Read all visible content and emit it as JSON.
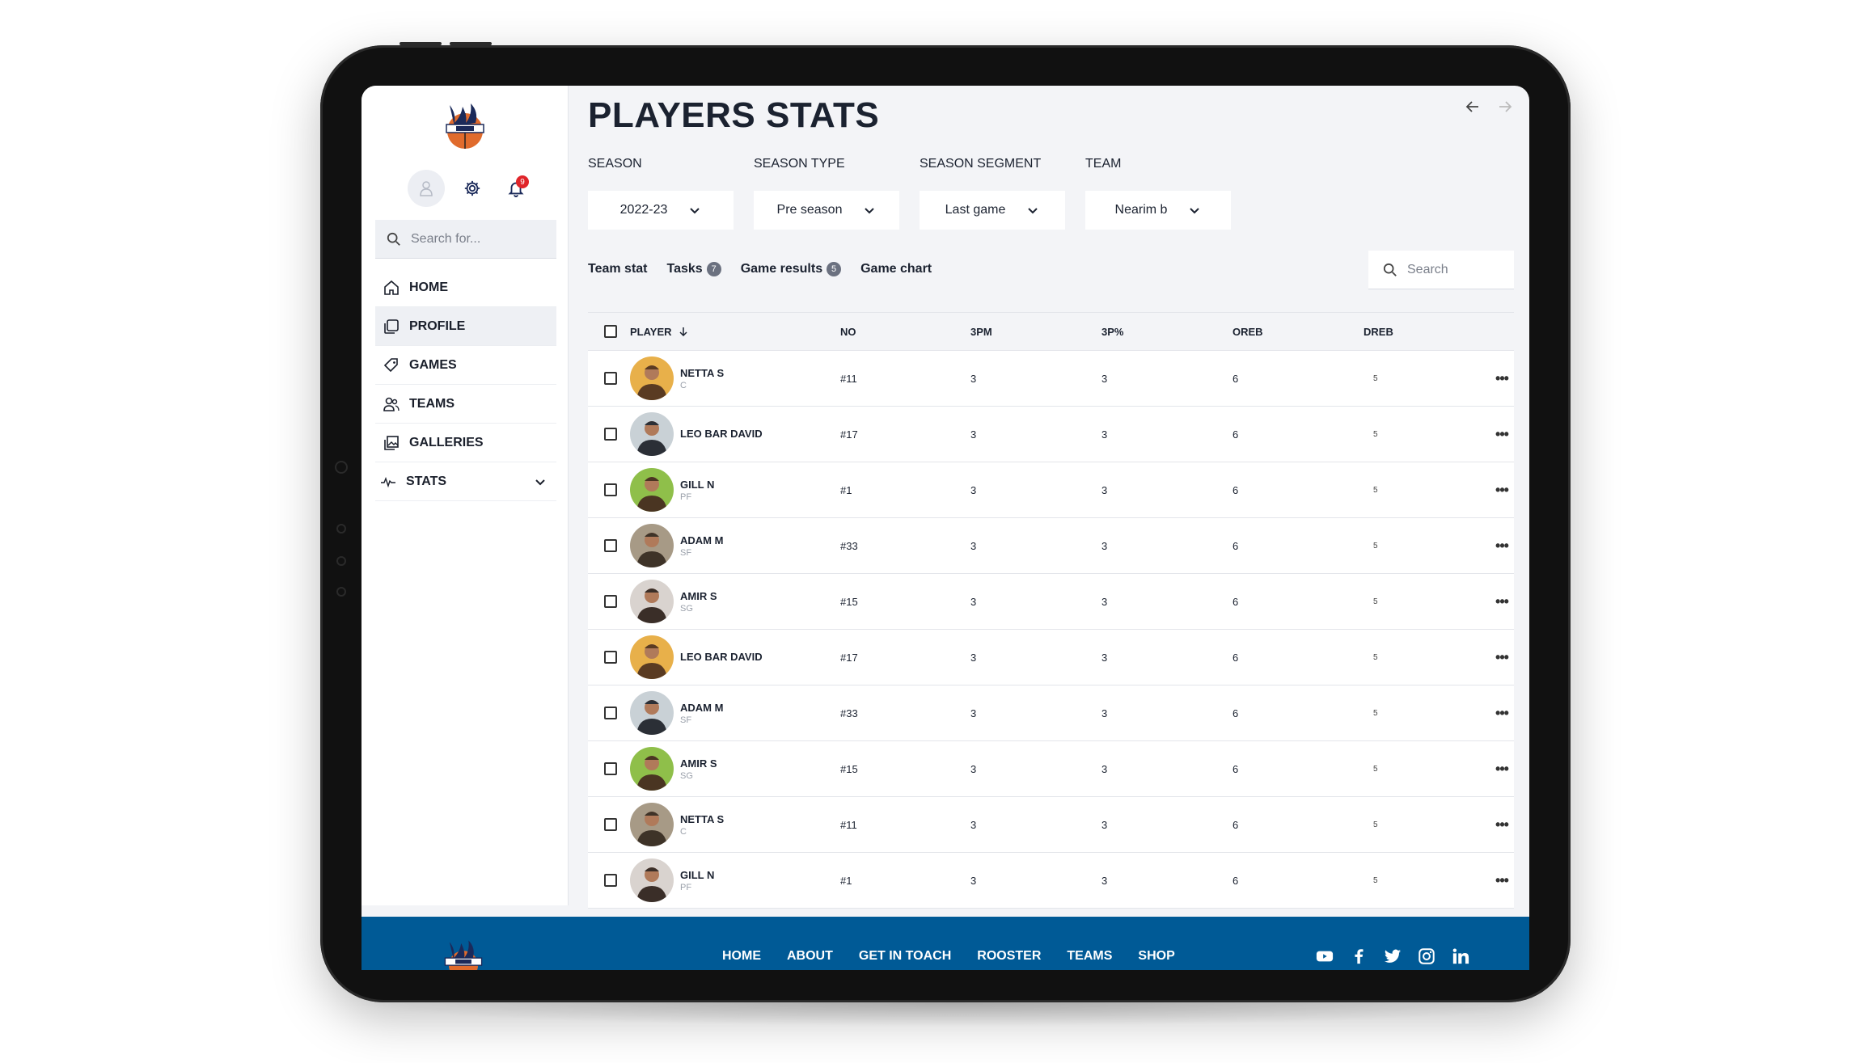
{
  "sidebar": {
    "notif_count": "9",
    "search_placeholder": "Search for...",
    "nav": [
      {
        "label": "HOME"
      },
      {
        "label": "PROFILE"
      },
      {
        "label": "GAMES"
      },
      {
        "label": "TEAMS"
      },
      {
        "label": "GALLERIES"
      },
      {
        "label": "STATS"
      }
    ]
  },
  "main": {
    "title": "PLAYERS STATS",
    "filters": [
      {
        "label": "SEASON",
        "value": "2022-23"
      },
      {
        "label": "SEASON TYPE",
        "value": "Pre season"
      },
      {
        "label": "SEASON SEGMENT",
        "value": "Last game"
      },
      {
        "label": "TEAM",
        "value": "Nearim b"
      }
    ],
    "tabs": [
      {
        "label": "Team stat",
        "badge": ""
      },
      {
        "label": "Tasks",
        "badge": "7"
      },
      {
        "label": "Game results",
        "badge": "5"
      },
      {
        "label": "Game chart",
        "badge": ""
      }
    ],
    "search_placeholder": "Search"
  },
  "table": {
    "columns": [
      "PLAYER",
      "NO",
      "3PM",
      "3P%",
      "OREB",
      "DREB"
    ],
    "rows": [
      {
        "name": "NETTA S",
        "pos": "C",
        "no": "#11",
        "pm3": "3",
        "pp3": "3",
        "oreb": "6",
        "dreb": "5"
      },
      {
        "name": "LEO BAR DAVID",
        "pos": "",
        "no": "#17",
        "pm3": "3",
        "pp3": "3",
        "oreb": "6",
        "dreb": "5"
      },
      {
        "name": "GILL N",
        "pos": "PF",
        "no": "#1",
        "pm3": "3",
        "pp3": "3",
        "oreb": "6",
        "dreb": "5"
      },
      {
        "name": "ADAM M",
        "pos": "SF",
        "no": "#33",
        "pm3": "3",
        "pp3": "3",
        "oreb": "6",
        "dreb": "5"
      },
      {
        "name": "AMIR S",
        "pos": "SG",
        "no": "#15",
        "pm3": "3",
        "pp3": "3",
        "oreb": "6",
        "dreb": "5"
      },
      {
        "name": "LEO BAR DAVID",
        "pos": "",
        "no": "#17",
        "pm3": "3",
        "pp3": "3",
        "oreb": "6",
        "dreb": "5"
      },
      {
        "name": "ADAM M",
        "pos": "SF",
        "no": "#33",
        "pm3": "3",
        "pp3": "3",
        "oreb": "6",
        "dreb": "5"
      },
      {
        "name": "AMIR S",
        "pos": "SG",
        "no": "#15",
        "pm3": "3",
        "pp3": "3",
        "oreb": "6",
        "dreb": "5"
      },
      {
        "name": "NETTA S",
        "pos": "C",
        "no": "#11",
        "pm3": "3",
        "pp3": "3",
        "oreb": "6",
        "dreb": "5"
      },
      {
        "name": "GILL N",
        "pos": "PF",
        "no": "#1",
        "pm3": "3",
        "pp3": "3",
        "oreb": "6",
        "dreb": "5"
      }
    ]
  },
  "footer": {
    "nav": [
      "HOME",
      "ABOUT",
      "GET IN TOACH",
      "ROOSTER",
      "TEAMS",
      "SHOP"
    ],
    "social": [
      "youtube-icon",
      "facebook-icon",
      "twitter-icon",
      "instagram-icon",
      "linkedin-icon"
    ]
  },
  "colors": {
    "footer_bg": "#005a96",
    "brand_navy": "#1b2a5a",
    "notif_red": "#e0242a"
  }
}
